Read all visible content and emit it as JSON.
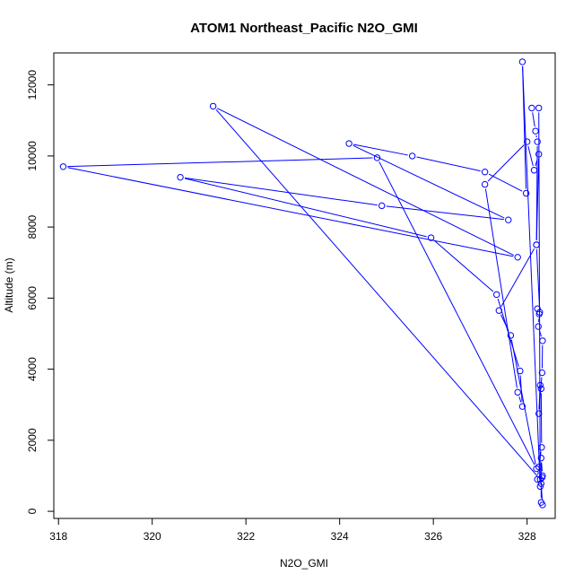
{
  "chart_data": {
    "type": "line",
    "title": "ATOM1 Northeast_Pacific N2O_GMI",
    "xlabel": "N2O_GMI",
    "ylabel": "Altitude (m)",
    "xlim": [
      317.9,
      328.6
    ],
    "ylim": [
      -200,
      12900
    ],
    "xticks": [
      318,
      320,
      322,
      324,
      326,
      328
    ],
    "yticks": [
      0,
      2000,
      4000,
      6000,
      8000,
      10000,
      12000
    ],
    "grid": false,
    "marker": "open-circle",
    "line_color": "#0000ff",
    "series": [
      {
        "points": [
          [
            328.33,
            180
          ],
          [
            328.3,
            780
          ],
          [
            328.32,
            950
          ],
          [
            328.22,
            900
          ],
          [
            328.25,
            1250
          ],
          [
            328.31,
            1800
          ],
          [
            328.3,
            3450
          ],
          [
            328.28,
            3550
          ],
          [
            328.25,
            2750
          ],
          [
            328.32,
            3900
          ],
          [
            328.33,
            4800
          ],
          [
            328.24,
            5200
          ],
          [
            328.26,
            5550
          ],
          [
            328.22,
            5700
          ],
          [
            328.27,
            5600
          ],
          [
            328.2,
            7500
          ],
          [
            328.22,
            10400
          ],
          [
            328.18,
            10700
          ],
          [
            328.1,
            11350
          ],
          [
            328.25,
            11350
          ],
          [
            328.28,
            700
          ],
          [
            327.9,
            12650
          ],
          [
            327.98,
            8950
          ],
          [
            327.1,
            9550
          ],
          [
            325.55,
            10000
          ],
          [
            324.2,
            10350
          ],
          [
            327.6,
            8200
          ],
          [
            324.9,
            8600
          ],
          [
            320.6,
            9400
          ],
          [
            325.95,
            7700
          ],
          [
            327.35,
            6100
          ],
          [
            327.85,
            3950
          ],
          [
            327.9,
            2950
          ],
          [
            327.8,
            3350
          ],
          [
            327.1,
            9200
          ],
          [
            328.0,
            10400
          ],
          [
            328.15,
            9600
          ],
          [
            328.25,
            10050
          ],
          [
            328.2,
            7500
          ],
          [
            327.4,
            5650
          ],
          [
            327.65,
            4950
          ],
          [
            328.2,
            1200
          ],
          [
            324.8,
            9950
          ],
          [
            318.1,
            9700
          ],
          [
            327.8,
            7150
          ],
          [
            321.3,
            11400
          ],
          [
            328.28,
            900
          ],
          [
            328.33,
            1000
          ],
          [
            328.3,
            1500
          ],
          [
            328.3,
            250
          ]
        ]
      }
    ]
  }
}
